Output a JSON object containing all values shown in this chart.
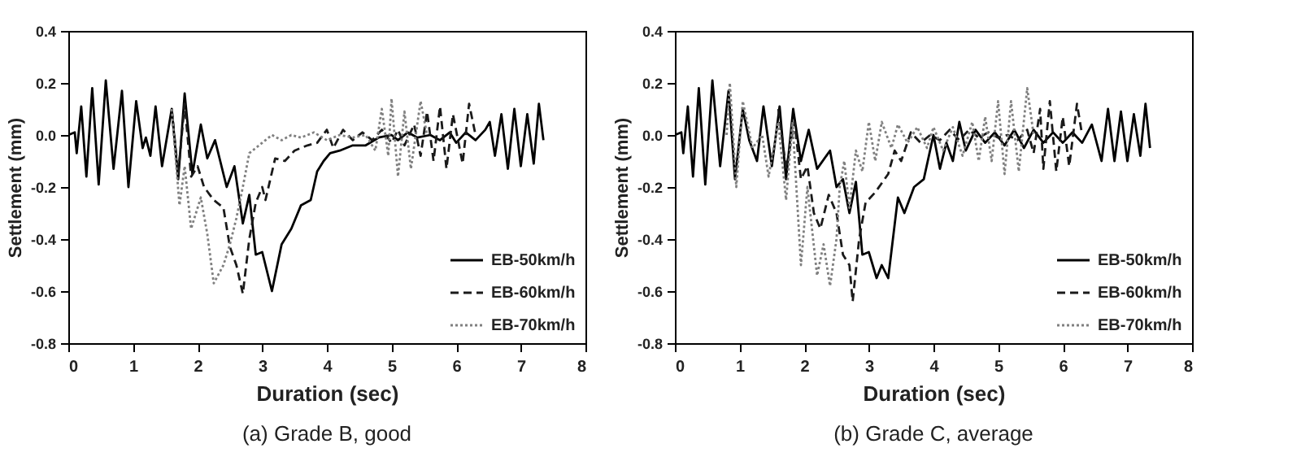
{
  "chart_data": [
    {
      "type": "line",
      "title": "(a) Grade B, good",
      "xlabel": "Duration  (sec)",
      "ylabel": "Settlement (mm)",
      "xlim": [
        0,
        8
      ],
      "xticks": [
        0,
        1,
        2,
        3,
        4,
        5,
        6,
        7,
        8
      ],
      "ylim": [
        -0.8,
        0.4
      ],
      "yticks": [
        0.4,
        0.2,
        {
          "value": 0,
          "label": "0.0"
        },
        -0.2,
        -0.4,
        -0.6,
        -0.8
      ],
      "grid": false,
      "legend": "bottom right",
      "series": [
        {
          "name": "EB-50km/h",
          "color": "#000000",
          "line_style": "solid",
          "x": [
            0,
            0.1,
            0.13,
            0.2,
            0.28,
            0.37,
            0.47,
            0.58,
            0.7,
            0.83,
            0.93,
            1.05,
            1.15,
            1.2,
            1.27,
            1.35,
            1.45,
            1.6,
            1.7,
            1.8,
            1.92,
            2.05,
            2.15,
            2.27,
            2.45,
            2.57,
            2.7,
            2.8,
            2.9,
            3.0,
            3.15,
            3.3,
            3.45,
            3.6,
            3.75,
            3.85,
            3.95,
            4.05,
            4.2,
            4.4,
            4.6,
            4.8,
            5.0,
            5.1,
            5.25,
            5.4,
            5.6,
            5.75,
            5.9,
            6.0,
            6.15,
            6.3,
            6.45,
            6.52,
            6.6,
            6.7,
            6.8,
            6.9,
            7.0,
            7.1,
            7.2,
            7.28,
            7.35
          ],
          "values": [
            0,
            0.01,
            -0.07,
            0.11,
            -0.16,
            0.18,
            -0.19,
            0.21,
            -0.13,
            0.17,
            -0.2,
            0.13,
            -0.05,
            -0.01,
            -0.08,
            0.11,
            -0.12,
            0.1,
            -0.17,
            0.16,
            -0.15,
            0.04,
            -0.09,
            -0.02,
            -0.2,
            -0.12,
            -0.34,
            -0.23,
            -0.46,
            -0.45,
            -0.6,
            -0.42,
            -0.36,
            -0.27,
            -0.25,
            -0.14,
            -0.1,
            -0.07,
            -0.06,
            -0.04,
            -0.04,
            -0.01,
            0,
            -0.02,
            0.01,
            -0.01,
            0,
            -0.02,
            0.01,
            -0.03,
            0.01,
            -0.02,
            0.02,
            0.05,
            -0.08,
            0.08,
            -0.13,
            0.1,
            -0.12,
            0.08,
            -0.11,
            0.12,
            -0.02
          ]
        },
        {
          "name": "EB-60km/h",
          "color": "#1a1a1a",
          "line_style": "dashed",
          "x": [
            1.6,
            1.7,
            1.8,
            1.9,
            2.0,
            2.1,
            2.25,
            2.4,
            2.5,
            2.6,
            2.7,
            2.8,
            2.9,
            3.0,
            3.05,
            3.2,
            3.35,
            3.5,
            3.7,
            3.85,
            4.0,
            4.1,
            4.25,
            4.4,
            4.55,
            4.7,
            4.85,
            5.0,
            5.1,
            5.2,
            5.35,
            5.45,
            5.55,
            5.65,
            5.75,
            5.85,
            5.95,
            6.1,
            6.2,
            6.3
          ],
          "values": [
            0.1,
            -0.15,
            0.12,
            -0.16,
            -0.12,
            -0.2,
            -0.25,
            -0.28,
            -0.43,
            -0.5,
            -0.61,
            -0.4,
            -0.26,
            -0.2,
            -0.25,
            -0.09,
            -0.1,
            -0.06,
            -0.04,
            -0.03,
            0.02,
            -0.05,
            0.02,
            -0.02,
            0.01,
            -0.02,
            0.02,
            -0.03,
            0.02,
            -0.04,
            0.04,
            -0.08,
            0.09,
            -0.1,
            0.11,
            -0.13,
            0.08,
            -0.11,
            0.12,
            0
          ]
        },
        {
          "name": "EB-70km/h",
          "color": "#808080",
          "line_style": "dotted",
          "x": [
            1.6,
            1.72,
            1.8,
            1.9,
            2.05,
            2.15,
            2.25,
            2.4,
            2.5,
            2.6,
            2.7,
            2.8,
            2.9,
            3.0,
            3.15,
            3.3,
            3.45,
            3.6,
            3.8,
            4.0,
            4.2,
            4.4,
            4.6,
            4.75,
            4.85,
            4.95,
            5.0,
            5.1,
            5.2,
            5.3,
            5.45,
            5.55
          ],
          "values": [
            0.1,
            -0.27,
            -0.12,
            -0.36,
            -0.24,
            -0.38,
            -0.57,
            -0.5,
            -0.42,
            -0.32,
            -0.2,
            -0.07,
            -0.05,
            -0.03,
            0,
            -0.02,
            0,
            -0.01,
            0.01,
            -0.02,
            0,
            -0.01,
            0,
            -0.06,
            0.1,
            -0.08,
            0.14,
            -0.16,
            0.09,
            -0.13,
            0.13,
            0
          ]
        }
      ]
    },
    {
      "type": "line",
      "title": "(b) Grade C, average",
      "xlabel": "Duration  (sec)",
      "ylabel": "Settlement (mm)",
      "xlim": [
        0,
        8
      ],
      "xticks": [
        0,
        1,
        2,
        3,
        4,
        5,
        6,
        7,
        8
      ],
      "ylim": [
        -0.8,
        0.4
      ],
      "yticks": [
        0.4,
        0.2,
        {
          "value": 0,
          "label": "0.0"
        },
        -0.2,
        -0.4,
        -0.6,
        -0.8
      ],
      "grid": false,
      "legend": "bottom right",
      "series": [
        {
          "name": "EB-50km/h",
          "color": "#000000",
          "line_style": "solid",
          "x": [
            0,
            0.1,
            0.13,
            0.2,
            0.28,
            0.37,
            0.47,
            0.58,
            0.7,
            0.83,
            0.93,
            1.05,
            1.15,
            1.27,
            1.37,
            1.5,
            1.62,
            1.72,
            1.83,
            1.95,
            2.07,
            2.2,
            2.4,
            2.5,
            2.6,
            2.7,
            2.8,
            2.9,
            3.0,
            3.12,
            3.2,
            3.3,
            3.45,
            3.55,
            3.7,
            3.85,
            4.0,
            4.1,
            4.2,
            4.3,
            4.4,
            4.5,
            4.65,
            4.8,
            4.95,
            5.1,
            5.25,
            5.4,
            5.55,
            5.7,
            5.85,
            6.0,
            6.15,
            6.3,
            6.45,
            6.6,
            6.7,
            6.8,
            6.9,
            7.0,
            7.1,
            7.2,
            7.28,
            7.35
          ],
          "values": [
            0,
            0.01,
            -0.07,
            0.11,
            -0.16,
            0.18,
            -0.19,
            0.21,
            -0.12,
            0.17,
            -0.17,
            0.1,
            -0.02,
            -0.1,
            0.11,
            -0.12,
            0.11,
            -0.17,
            0.1,
            -0.1,
            0.02,
            -0.13,
            -0.06,
            -0.2,
            -0.17,
            -0.3,
            -0.18,
            -0.46,
            -0.45,
            -0.55,
            -0.5,
            -0.55,
            -0.24,
            -0.3,
            -0.2,
            -0.17,
            0,
            -0.13,
            -0.03,
            -0.1,
            0.05,
            -0.06,
            0.02,
            -0.03,
            0.01,
            -0.04,
            0.02,
            -0.05,
            0.02,
            -0.03,
            0.01,
            -0.03,
            0.01,
            -0.03,
            0.04,
            -0.1,
            0.1,
            -0.1,
            0.09,
            -0.1,
            0.08,
            -0.08,
            0.12,
            -0.05
          ]
        },
        {
          "name": "EB-60km/h",
          "color": "#1a1a1a",
          "line_style": "dashed",
          "x": [
            1.6,
            1.72,
            1.85,
            1.95,
            2.05,
            2.15,
            2.25,
            2.38,
            2.5,
            2.6,
            2.7,
            2.75,
            2.85,
            2.95,
            3.1,
            3.3,
            3.4,
            3.5,
            3.65,
            3.8,
            3.95,
            4.1,
            4.25,
            4.4,
            4.55,
            4.7,
            4.85,
            5.0,
            5.15,
            5.3,
            5.45,
            5.55,
            5.65,
            5.7,
            5.8,
            5.9,
            6.0,
            6.1,
            6.22,
            6.3
          ],
          "values": [
            0.1,
            -0.13,
            0.05,
            -0.17,
            -0.12,
            -0.3,
            -0.36,
            -0.23,
            -0.3,
            -0.46,
            -0.5,
            -0.64,
            -0.4,
            -0.26,
            -0.22,
            -0.15,
            -0.06,
            -0.1,
            0.01,
            -0.03,
            0,
            -0.02,
            0.02,
            -0.02,
            0.02,
            -0.01,
            0.01,
            -0.01,
            0,
            -0.02,
            0.02,
            -0.07,
            0.1,
            -0.13,
            0.13,
            -0.14,
            0.07,
            -0.12,
            0.12,
            0
          ]
        },
        {
          "name": "EB-70km/h",
          "color": "#808080",
          "line_style": "dotted",
          "x": [
            0.8,
            0.85,
            0.95,
            1.05,
            1.2,
            1.35,
            1.45,
            1.6,
            1.72,
            1.82,
            1.95,
            2.05,
            2.2,
            2.3,
            2.4,
            2.5,
            2.55,
            2.62,
            2.7,
            2.8,
            2.9,
            3.0,
            3.1,
            3.2,
            3.35,
            3.45,
            3.6,
            3.75,
            3.9,
            4.0,
            4.15,
            4.3,
            4.45,
            4.6,
            4.7,
            4.8,
            4.9,
            5.0,
            5.1,
            5.2,
            5.32,
            5.45,
            5.55
          ],
          "values": [
            0,
            0.2,
            -0.2,
            0.13,
            -0.05,
            0,
            -0.16,
            0.05,
            -0.25,
            0.05,
            -0.5,
            -0.2,
            -0.54,
            -0.42,
            -0.58,
            -0.4,
            -0.2,
            -0.1,
            -0.28,
            -0.06,
            -0.14,
            0.05,
            -0.1,
            0.05,
            -0.05,
            0.04,
            -0.03,
            0.03,
            -0.05,
            0.03,
            -0.06,
            0.03,
            -0.08,
            0.05,
            -0.1,
            0.07,
            -0.1,
            0.13,
            -0.15,
            0.13,
            -0.14,
            0.18,
            0
          ]
        }
      ]
    }
  ]
}
